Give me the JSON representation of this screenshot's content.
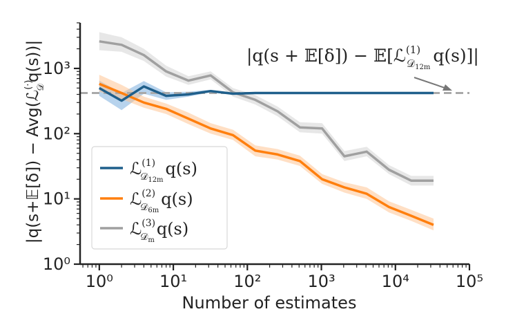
{
  "chart_data": {
    "type": "line",
    "xscale": "log",
    "yscale": "log",
    "xlabel": "Number of estimates",
    "ylabel": "|q(s+𝔼[δ]) − Avg(ℒ𝒟(·)q(s))|",
    "xlim": [
      0.55,
      100000
    ],
    "ylim": [
      1,
      5000
    ],
    "xticks": [
      {
        "value": 1,
        "label": "10⁰"
      },
      {
        "value": 10,
        "label": "10¹"
      },
      {
        "value": 100,
        "label": "10²"
      },
      {
        "value": 1000,
        "label": "10³"
      },
      {
        "value": 10000,
        "label": "10⁴"
      },
      {
        "value": 100000,
        "label": "10⁵"
      }
    ],
    "yticks": [
      {
        "value": 1,
        "label": "10⁰"
      },
      {
        "value": 10,
        "label": "10¹"
      },
      {
        "value": 100,
        "label": "10²"
      },
      {
        "value": 1000,
        "label": "10³"
      }
    ],
    "reference_line": {
      "value": 420,
      "label": "|q(s + 𝔼[δ]) − 𝔼[ℒ(1)𝒟12m q(s)]|",
      "color": "#a9a9a9"
    },
    "legend_position": "lower-left",
    "series": [
      {
        "name": "ℒ(1)𝒟12m q(s)",
        "legend_label": "ℒ(1)𝒟12m q(s)",
        "color": "#1f5f8b",
        "band_color": "#6fa8dc",
        "x": [
          1,
          2,
          4,
          8,
          16,
          32,
          64,
          128,
          256,
          512,
          1024,
          2048,
          4096,
          8192,
          16384,
          32768
        ],
        "y": [
          500,
          320,
          530,
          380,
          400,
          450,
          410,
          420,
          420,
          420,
          420,
          420,
          420,
          420,
          420,
          420
        ],
        "lower": [
          380,
          230,
          410,
          330,
          370,
          430,
          400,
          415,
          415,
          415,
          415,
          415,
          415,
          415,
          415,
          415
        ],
        "upper": [
          650,
          420,
          640,
          430,
          440,
          470,
          420,
          425,
          425,
          425,
          425,
          425,
          425,
          425,
          425,
          425
        ]
      },
      {
        "name": "ℒ(2)𝒟6m q(s)",
        "legend_label": "ℒ(2)𝒟6m q(s)",
        "color": "#ff7f0e",
        "band_color": "#ffc08a",
        "x": [
          1,
          2,
          4,
          8,
          16,
          32,
          64,
          128,
          256,
          512,
          1024,
          2048,
          4096,
          8192,
          16384,
          32768
        ],
        "y": [
          580,
          420,
          300,
          240,
          170,
          120,
          95,
          55,
          48,
          38,
          20,
          15,
          12,
          7.5,
          5.5,
          4
        ],
        "lower": [
          440,
          340,
          250,
          200,
          140,
          100,
          80,
          45,
          40,
          32,
          17,
          12.5,
          10,
          6.2,
          4.6,
          3.3
        ],
        "upper": [
          800,
          560,
          370,
          290,
          210,
          145,
          115,
          66,
          58,
          46,
          24,
          18,
          15,
          9.2,
          6.8,
          5
        ]
      },
      {
        "name": "ℒ(3)𝒟m q(s)",
        "legend_label": "ℒ(3)𝒟m q(s)",
        "color": "#a0a0a0",
        "band_color": "#d0d0d0",
        "x": [
          1,
          2,
          4,
          8,
          16,
          32,
          64,
          128,
          256,
          512,
          1024,
          2048,
          4096,
          8192,
          16384,
          32768
        ],
        "y": [
          2600,
          2300,
          1600,
          900,
          650,
          780,
          430,
          330,
          220,
          125,
          120,
          45,
          53,
          28,
          19,
          19
        ],
        "lower": [
          1900,
          1800,
          1300,
          750,
          560,
          680,
          370,
          280,
          185,
          105,
          100,
          38,
          45,
          24,
          16,
          16
        ],
        "upper": [
          3600,
          3000,
          2000,
          1100,
          760,
          900,
          500,
          390,
          260,
          150,
          145,
          54,
          63,
          33,
          22.5,
          22.5
        ]
      }
    ]
  },
  "legend": {
    "items": [
      {
        "prefix": "ℒ",
        "sup": "(1)",
        "sub": "𝒟",
        "subsub": "12m",
        "suffix": "q(s)"
      },
      {
        "prefix": "ℒ",
        "sup": "(2)",
        "sub": "𝒟",
        "subsub": "6m",
        "suffix": "q(s)"
      },
      {
        "prefix": "ℒ",
        "sup": "(3)",
        "sub": "𝒟",
        "subsub": "m",
        "suffix": "q(s)"
      }
    ]
  },
  "annotation": {
    "main": "|q(s + 𝔼[δ]) − 𝔼[ℒ",
    "sup": "(1)",
    "sub": "𝒟",
    "subsub": "12m",
    "tail": "q(s)]|"
  },
  "ylabel_parts": {
    "main": "|q(s+𝔼[δ]) − Avg(ℒ",
    "sup": "(·)",
    "sub": "𝒟",
    "tail": "q(s))|"
  }
}
